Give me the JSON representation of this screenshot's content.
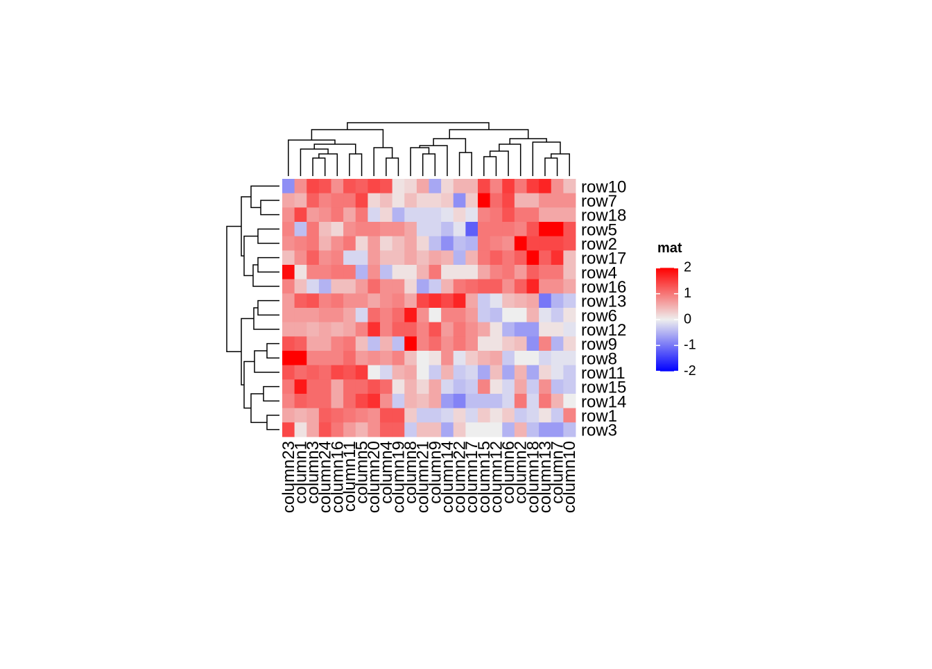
{
  "chart_data": {
    "type": "heatmap",
    "rows": [
      "row10",
      "row7",
      "row18",
      "row5",
      "row2",
      "row17",
      "row4",
      "row16",
      "row13",
      "row6",
      "row12",
      "row9",
      "row8",
      "row11",
      "row15",
      "row14",
      "row1",
      "row3"
    ],
    "columns": [
      "column23",
      "column1",
      "column3",
      "column24",
      "column16",
      "column11",
      "column5",
      "column20",
      "column4",
      "column19",
      "column8",
      "column21",
      "column9",
      "column14",
      "column22",
      "column17",
      "column15",
      "column12",
      "column6",
      "column2",
      "column18",
      "column13",
      "column7",
      "column10"
    ],
    "values": [
      [
        -0.8,
        0.8,
        1.4,
        1.3,
        0.8,
        1.3,
        1.2,
        1.4,
        1.3,
        0.1,
        0.2,
        0.6,
        -0.6,
        0.2,
        0.5,
        0.5,
        1.4,
        0.9,
        1.5,
        1.0,
        1.5,
        1.7,
        0.8,
        0.4
      ],
      [
        0.6,
        0.5,
        1.2,
        0.9,
        1.0,
        1.0,
        1.4,
        0.2,
        0.4,
        0.1,
        0.4,
        0.2,
        0.2,
        0.3,
        -0.8,
        0.3,
        2.0,
        1.1,
        1.4,
        0.5,
        0.5,
        0.8,
        0.8,
        0.8
      ],
      [
        0.8,
        1.4,
        0.7,
        0.8,
        1.0,
        0.6,
        1.0,
        -0.2,
        0.2,
        -0.5,
        -0.2,
        -0.2,
        -0.2,
        -0.1,
        0.2,
        -0.1,
        0.9,
        1.0,
        1.3,
        1.0,
        1.0,
        0.6,
        0.6,
        0.6
      ],
      [
        0.9,
        -0.4,
        1.0,
        0.4,
        0.2,
        0.8,
        0.9,
        0.9,
        0.8,
        0.8,
        0.6,
        -0.2,
        -0.2,
        -0.4,
        -0.1,
        -1.2,
        1.0,
        1.0,
        1.0,
        0.9,
        1.3,
        2.0,
        2.0,
        1.3
      ],
      [
        0.8,
        0.9,
        1.0,
        0.5,
        0.8,
        1.0,
        0.2,
        0.7,
        0.2,
        0.4,
        0.6,
        0.2,
        -0.4,
        -0.8,
        -0.4,
        -0.5,
        1.0,
        0.9,
        0.8,
        2.0,
        1.4,
        1.4,
        1.4,
        1.3
      ],
      [
        0.4,
        0.8,
        1.2,
        0.8,
        0.9,
        -0.2,
        -0.2,
        0.7,
        0.4,
        0.4,
        0.6,
        0.4,
        0.6,
        0.5,
        -0.5,
        0.5,
        1.0,
        1.2,
        1.0,
        1.2,
        2.0,
        1.2,
        1.6,
        0.4
      ],
      [
        1.9,
        0.1,
        0.9,
        0.9,
        1.0,
        1.0,
        -0.5,
        0.8,
        -0.4,
        0.1,
        0.1,
        0.5,
        1.0,
        0.1,
        0.1,
        0.1,
        0.6,
        0.9,
        1.0,
        0.7,
        1.2,
        1.0,
        1.0,
        0.4
      ],
      [
        0.9,
        0.4,
        -0.2,
        -0.5,
        0.4,
        0.4,
        0.7,
        1.1,
        0.8,
        0.8,
        0.2,
        -0.6,
        -0.3,
        0.5,
        1.0,
        1.1,
        1.2,
        1.2,
        0.8,
        1.2,
        1.7,
        0.8,
        0.8,
        0.6
      ],
      [
        0.7,
        1.2,
        1.3,
        0.9,
        1.0,
        0.8,
        0.8,
        0.6,
        0.8,
        0.9,
        0.6,
        1.4,
        1.6,
        1.4,
        1.7,
        0.6,
        -0.3,
        -0.1,
        0.4,
        0.5,
        0.6,
        -1.0,
        -0.5,
        -0.3
      ],
      [
        0.7,
        0.7,
        0.7,
        0.8,
        0.8,
        0.6,
        -0.2,
        1.1,
        0.9,
        1.1,
        1.8,
        0.8,
        0.0,
        0.9,
        0.9,
        0.7,
        -0.3,
        -0.4,
        0.0,
        0.0,
        0.5,
        -0.1,
        -0.3,
        0.1
      ],
      [
        0.6,
        0.6,
        0.5,
        0.6,
        0.5,
        0.6,
        0.9,
        1.6,
        0.9,
        1.2,
        1.2,
        0.9,
        1.3,
        0.7,
        1.0,
        0.8,
        0.6,
        0.1,
        -0.5,
        -0.7,
        -0.7,
        0.1,
        0.1,
        -0.1
      ],
      [
        1.3,
        1.2,
        0.6,
        0.6,
        0.9,
        1.0,
        0.4,
        -0.4,
        0.5,
        -0.4,
        2.0,
        0.9,
        1.1,
        0.8,
        1.0,
        0.8,
        0.1,
        0.1,
        0.3,
        0.4,
        -0.8,
        0.9,
        -0.5,
        0.2
      ],
      [
        2.1,
        2.2,
        0.9,
        0.9,
        0.9,
        1.1,
        0.7,
        0.8,
        0.7,
        0.9,
        0.4,
        0.0,
        0.1,
        0.8,
        -0.1,
        0.3,
        0.5,
        0.6,
        -0.3,
        0.0,
        0.0,
        -0.2,
        -0.1,
        -0.1
      ],
      [
        1.3,
        1.1,
        1.2,
        1.1,
        1.4,
        1.3,
        1.5,
        0.0,
        -0.2,
        0.5,
        0.6,
        0.0,
        -0.3,
        0.5,
        -0.3,
        -0.2,
        -0.6,
        0.4,
        -0.6,
        0.5,
        -0.6,
        0.2,
        -0.1,
        -0.3
      ],
      [
        1.0,
        1.8,
        1.1,
        1.1,
        0.6,
        1.1,
        1.1,
        1.3,
        1.1,
        0.1,
        0.5,
        0.2,
        0.6,
        -0.2,
        -0.4,
        -0.3,
        0.9,
        0.1,
        -0.2,
        0.6,
        -0.3,
        0.8,
        -0.4,
        -0.3
      ],
      [
        0.9,
        1.2,
        1.1,
        1.1,
        0.6,
        1.1,
        1.4,
        1.6,
        0.8,
        -0.3,
        0.5,
        0.4,
        0.6,
        -0.7,
        -0.9,
        -0.4,
        -0.4,
        -0.4,
        -0.2,
        1.0,
        -0.2,
        1.0,
        0.5,
        0.0
      ],
      [
        0.6,
        0.5,
        0.6,
        1.2,
        1.1,
        1.0,
        0.9,
        0.8,
        1.3,
        1.3,
        0.3,
        -0.3,
        -0.3,
        -0.2,
        0.2,
        -0.2,
        0.3,
        0.1,
        0.3,
        -0.3,
        -0.2,
        0.1,
        -0.3,
        0.9
      ],
      [
        1.4,
        0.1,
        0.6,
        1.3,
        1.0,
        0.7,
        0.5,
        0.8,
        1.2,
        1.2,
        -0.3,
        0.4,
        0.4,
        -0.6,
        0.3,
        0.0,
        0.0,
        0.0,
        -0.5,
        0.5,
        -0.4,
        -0.7,
        -0.7,
        -0.4
      ]
    ],
    "colorscale": {
      "breaks": [
        -2,
        0,
        2
      ],
      "colors": [
        "#0000ff",
        "#eeeeee",
        "#ff0000"
      ]
    },
    "legend": {
      "title": "mat",
      "ticks": [
        -2,
        -1,
        0,
        1,
        2
      ]
    }
  }
}
